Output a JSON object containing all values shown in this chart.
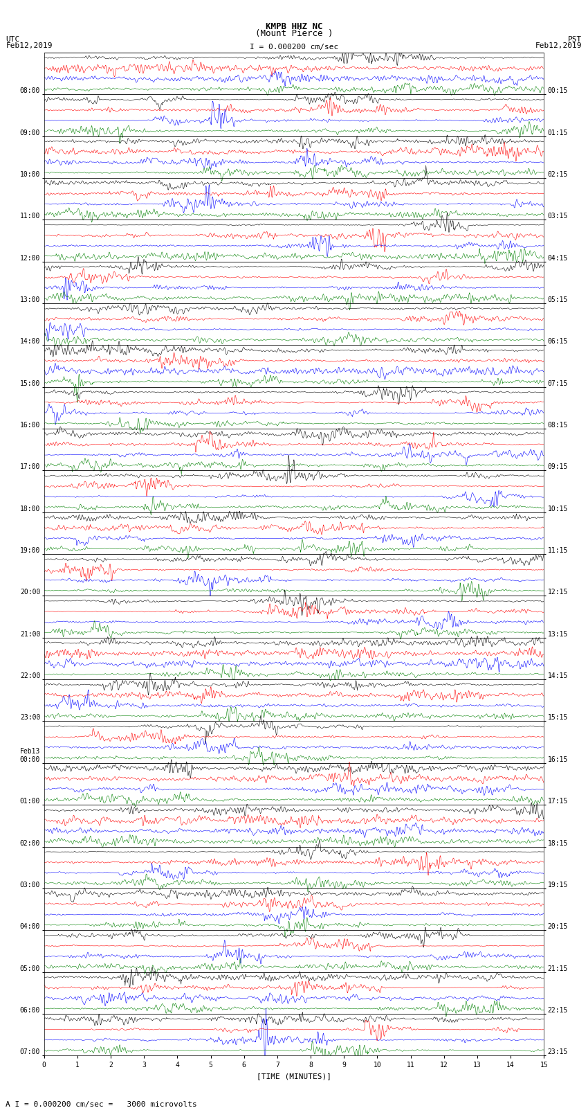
{
  "title_line1": "KMPB HHZ NC",
  "title_line2": "(Mount Pierce )",
  "scale_label": "I = 0.000200 cm/sec",
  "left_label_top": "UTC",
  "left_label_date": "Feb12,2019",
  "right_label_top": "PST",
  "right_label_date": "Feb12,2019",
  "bottom_label": "A I = 0.000200 cm/sec =   3000 microvolts",
  "x_axis_label": "[TIME (MINUTES)]",
  "left_times": [
    "08:00",
    "09:00",
    "10:00",
    "11:00",
    "12:00",
    "13:00",
    "14:00",
    "15:00",
    "16:00",
    "17:00",
    "18:00",
    "19:00",
    "20:00",
    "21:00",
    "22:00",
    "23:00",
    "Feb13\n00:00",
    "01:00",
    "02:00",
    "03:00",
    "04:00",
    "05:00",
    "06:00",
    "07:00"
  ],
  "right_times": [
    "00:15",
    "01:15",
    "02:15",
    "03:15",
    "04:15",
    "05:15",
    "06:15",
    "07:15",
    "08:15",
    "09:15",
    "10:15",
    "11:15",
    "12:15",
    "13:15",
    "14:15",
    "15:15",
    "16:15",
    "17:15",
    "18:15",
    "19:15",
    "20:15",
    "21:15",
    "22:15",
    "23:15"
  ],
  "x_ticks": [
    0,
    1,
    2,
    3,
    4,
    5,
    6,
    7,
    8,
    9,
    10,
    11,
    12,
    13,
    14,
    15
  ],
  "num_rows": 24,
  "sub_rows": 4,
  "fig_width": 8.5,
  "fig_height": 16.13,
  "bg_color": "#ffffff",
  "line_colors": [
    "#000000",
    "#ff0000",
    "#0000ff",
    "#008000"
  ],
  "font_size_title": 9,
  "font_size_labels": 8,
  "font_size_ticks": 7,
  "font_family": "monospace"
}
